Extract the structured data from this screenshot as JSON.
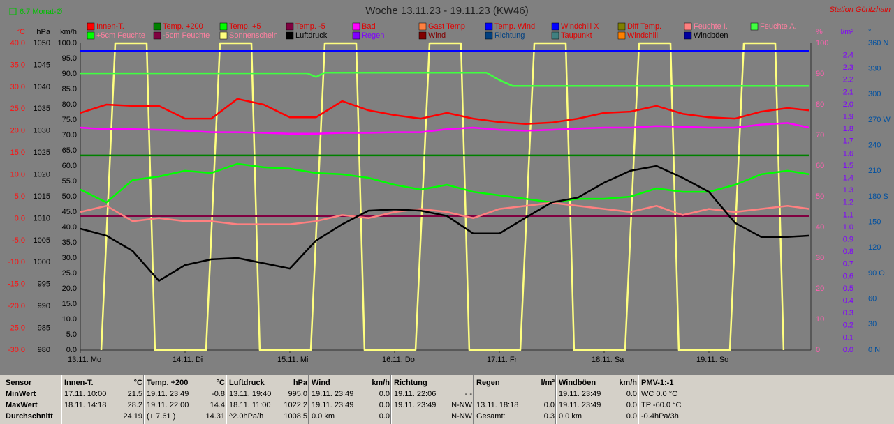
{
  "monthly_avg": "6.7 Monat-Ø",
  "station": "Station Göritzhain",
  "chart_data": {
    "type": "line",
    "title": "Woche 13.11.23 - 19.11.23 (KW46)",
    "xlim": [
      0,
      168
    ],
    "xticks": [
      {
        "value": 0,
        "label": "13.11. Mo"
      },
      {
        "value": 24,
        "label": "14.11. Di"
      },
      {
        "value": 48,
        "label": "15.11. Mi"
      },
      {
        "value": 72,
        "label": "16.11. Do"
      },
      {
        "value": 96,
        "label": "17.11. Fr"
      },
      {
        "value": 120,
        "label": "18.11. Sa"
      },
      {
        "value": 144,
        "label": "19.11. So"
      }
    ],
    "axes": {
      "C": {
        "label": "°C",
        "color": "#ff1010",
        "lim": [
          -30,
          40
        ],
        "ticks": [
          {
            "value": -30,
            "label": "-30.0"
          },
          {
            "value": -25,
            "label": "-25.0"
          },
          {
            "value": -20,
            "label": "-20.0"
          },
          {
            "value": -15,
            "label": "-15.0"
          },
          {
            "value": -10,
            "label": "-10.0"
          },
          {
            "value": -5,
            "label": "-5.0"
          },
          {
            "value": 0,
            "label": "0.0"
          },
          {
            "value": 5,
            "label": "5.0"
          },
          {
            "value": 10,
            "label": "10.0"
          },
          {
            "value": 15,
            "label": "15.0"
          },
          {
            "value": 20,
            "label": "20.0"
          },
          {
            "value": 25,
            "label": "25.0"
          },
          {
            "value": 30,
            "label": "30.0"
          },
          {
            "value": 35,
            "label": "35.0"
          },
          {
            "value": 40,
            "label": "40.0"
          }
        ]
      },
      "hPa": {
        "label": "hPa",
        "color": "#000000",
        "lim": [
          980,
          1050
        ],
        "ticks": [
          980,
          985,
          990,
          995,
          1000,
          1005,
          1010,
          1015,
          1020,
          1025,
          1030,
          1035,
          1040,
          1045,
          1050
        ]
      },
      "kmh": {
        "label": "km/h",
        "color": "#000000",
        "lim": [
          0,
          100
        ],
        "ticks": [
          {
            "value": 0,
            "label": "0.0"
          },
          {
            "value": 5,
            "label": "5.0"
          },
          {
            "value": 10,
            "label": "10.0"
          },
          {
            "value": 15,
            "label": "15.0"
          },
          {
            "value": 20,
            "label": "20.0"
          },
          {
            "value": 25,
            "label": "25.0"
          },
          {
            "value": 30,
            "label": "30.0"
          },
          {
            "value": 35,
            "label": "35.0"
          },
          {
            "value": 40,
            "label": "40.0"
          },
          {
            "value": 45,
            "label": "45.0"
          },
          {
            "value": 50,
            "label": "50.0"
          },
          {
            "value": 55,
            "label": "55.0"
          },
          {
            "value": 60,
            "label": "60.0"
          },
          {
            "value": 65,
            "label": "65.0"
          },
          {
            "value": 70,
            "label": "70.0"
          },
          {
            "value": 75,
            "label": "75.0"
          },
          {
            "value": 80,
            "label": "80.0"
          },
          {
            "value": 85,
            "label": "85.0"
          },
          {
            "value": 90,
            "label": "90.0"
          },
          {
            "value": 95,
            "label": "95.0"
          },
          {
            "value": 100,
            "label": "100.0"
          }
        ]
      },
      "pct": {
        "label": "%",
        "color": "#ff60b0",
        "lim": [
          0,
          100
        ],
        "ticks": [
          0,
          10,
          20,
          30,
          40,
          50,
          60,
          70,
          80,
          90,
          100
        ]
      },
      "rain": {
        "label": "l/m²",
        "color": "#8000ff",
        "lim": [
          0,
          2.5
        ],
        "ticks": [
          {
            "value": 0,
            "label": "0.0"
          },
          0.1,
          0.2,
          0.3,
          0.4,
          0.5,
          0.6,
          0.7,
          0.8,
          0.9,
          {
            "value": 1,
            "label": "1.0"
          },
          1.1,
          1.2,
          1.3,
          1.4,
          1.5,
          1.6,
          1.7,
          1.8,
          1.9,
          {
            "value": 2,
            "label": "2.0"
          },
          2.1,
          2.2,
          2.3,
          2.4
        ]
      },
      "dir": {
        "label": "°",
        "color": "#0050a0",
        "lim": [
          0,
          360
        ],
        "ticks": [
          {
            "value": 0,
            "label": "0 N"
          },
          30,
          60,
          {
            "value": 90,
            "label": "90 O"
          },
          120,
          150,
          {
            "value": 180,
            "label": "180 S"
          },
          210,
          240,
          {
            "value": 270,
            "label": "270 W"
          },
          300,
          330,
          {
            "value": 360,
            "label": "360 N"
          }
        ]
      }
    },
    "x": [
      0,
      6,
      12,
      18,
      24,
      30,
      36,
      42,
      48,
      54,
      60,
      66,
      72,
      78,
      84,
      90,
      96,
      102,
      108,
      114,
      120,
      126,
      132,
      138,
      144,
      150,
      156,
      162,
      167
    ],
    "series": [
      {
        "name": "Innen-T.",
        "color": "#ff0000",
        "label_color": "#e00000",
        "axis": "C",
        "values": [
          24.1,
          26.0,
          25.7,
          25.7,
          22.8,
          22.8,
          27.3,
          26.0,
          23.1,
          23.1,
          26.8,
          24.7,
          23.6,
          22.8,
          24.1,
          22.8,
          22.0,
          21.6,
          21.9,
          22.8,
          24.1,
          24.4,
          25.7,
          23.9,
          23.1,
          22.8,
          24.4,
          25.2,
          24.7
        ]
      },
      {
        "name": "Temp. +200",
        "color": "#008000",
        "label_color": "#e00000",
        "axis": "C",
        "x": [
          0,
          167
        ],
        "values": [
          14.4,
          14.4
        ]
      },
      {
        "name": "Temp. +5",
        "color": "#00ff00",
        "label_color": "#e00000",
        "axis": "C",
        "values": [
          6.6,
          3.7,
          8.8,
          9.6,
          10.9,
          10.4,
          12.5,
          11.7,
          11.4,
          10.4,
          10.1,
          9.3,
          7.7,
          6.6,
          7.7,
          6.1,
          5.3,
          4.5,
          3.7,
          4.5,
          4.5,
          5.0,
          6.9,
          6.1,
          6.1,
          7.7,
          10.1,
          10.9,
          10.1
        ]
      },
      {
        "name": "Temp. -5",
        "color": "#800040",
        "label_color": "#e00000",
        "axis": "C",
        "x": [
          0,
          167
        ],
        "values": [
          0.6,
          0.6
        ]
      },
      {
        "name": "Bad",
        "color": "#ff00ff",
        "label_color": "#e00000",
        "axis": "pct",
        "values": [
          72.5,
          72,
          72,
          71.8,
          71.5,
          71,
          71,
          70.8,
          70.5,
          70.5,
          70.8,
          70.8,
          71,
          71,
          72,
          72.5,
          71.8,
          71.5,
          71.8,
          72.2,
          72.5,
          72.5,
          73,
          72.8,
          72.5,
          72.5,
          73.5,
          74,
          72.5
        ]
      },
      {
        "name": "Gast Temp",
        "color": "#ff8040",
        "label_color": "#e00000"
      },
      {
        "name": "Temp. Wind",
        "color": "#0000ff",
        "label_color": "#e00000"
      },
      {
        "name": "Windchill X",
        "color": "#0000ff",
        "label_color": "#e00000",
        "axis": "C",
        "x": [
          0,
          167
        ],
        "values": [
          38.2,
          38.2
        ]
      },
      {
        "name": "Diff Temp.",
        "color": "#808000",
        "label_color": "#e00000"
      },
      {
        "name": "Feuchte I.",
        "color": "#ff8080",
        "label_color": "#ff80a0",
        "axis": "pct",
        "values": [
          45,
          47,
          42,
          43,
          42,
          42,
          41,
          41,
          41,
          42,
          44,
          43,
          45,
          46,
          45,
          43,
          46,
          47,
          48,
          47,
          46,
          45,
          47,
          44,
          46,
          45,
          46,
          47,
          46
        ]
      },
      {
        "name": "Feuchte A.",
        "color": "#40ff40",
        "label_color": "#ff80a0",
        "axis": "pct",
        "x": [
          0,
          52,
          54,
          56,
          93,
          96,
          99,
          167
        ],
        "values": [
          90.2,
          90.2,
          89,
          90.4,
          90.4,
          88,
          86.1,
          86.1
        ]
      },
      {
        "name": "+5cm Feuchte",
        "color": "#00ff00",
        "label_color": "#ff80a0"
      },
      {
        "name": "-5cm Feuchte",
        "color": "#800040",
        "label_color": "#ff80a0"
      },
      {
        "name": "Sonnenschein",
        "color": "#ffff80",
        "label_color": "#ff80a0",
        "axis": "kmh",
        "x": [
          4.8,
          8,
          15.2,
          17.1,
          28.8,
          32,
          39.2,
          41.1,
          52.8,
          56,
          63.2,
          65.1,
          76.8,
          80,
          87.2,
          89.1,
          100.8,
          104,
          111.2,
          113.1,
          124.8,
          128,
          135.2,
          137.1,
          148.8,
          152,
          159.2,
          161.1
        ],
        "values": [
          0,
          100,
          100,
          0,
          0,
          100,
          100,
          0,
          0,
          100,
          100,
          0,
          0,
          100,
          100,
          0,
          0,
          100,
          100,
          0,
          0,
          100,
          100,
          0,
          0,
          100,
          100,
          0
        ]
      },
      {
        "name": "Luftdruck",
        "color": "#000000",
        "label_color": "#000000",
        "axis": "hPa",
        "values": [
          1007.7,
          1006.1,
          1002.6,
          995.8,
          999.4,
          1000.7,
          1001.0,
          999.8,
          998.6,
          1005.0,
          1008.7,
          1011.8,
          1012.1,
          1011.8,
          1010.6,
          1006.6,
          1006.6,
          1010.2,
          1013.7,
          1014.8,
          1018.2,
          1020.9,
          1022.0,
          1019.3,
          1016.1,
          1009.0,
          1005.8,
          1005.8,
          1006.1
        ]
      },
      {
        "name": "Regen",
        "color": "#8000ff",
        "label_color": "#8000ff"
      },
      {
        "name": "Wind",
        "color": "#800000",
        "label_color": "#800000"
      },
      {
        "name": "Richtung",
        "color": "#004080",
        "label_color": "#004080"
      },
      {
        "name": "Taupunkt",
        "color": "#408080",
        "label_color": "#e00000"
      },
      {
        "name": "Windchill",
        "color": "#ff8000",
        "label_color": "#e00000"
      },
      {
        "name": "Windböen",
        "color": "#0000a0",
        "label_color": "#000000"
      }
    ]
  },
  "table": {
    "row_labels": [
      "Sensor",
      "MinWert",
      "MaxWert",
      "Durchschnitt"
    ],
    "panels": [
      {
        "title": "Innen-T.",
        "unit": "°C",
        "rows": [
          {
            "left": "17.11. 10:00",
            "right": "21.5"
          },
          {
            "left": "18.11. 14:18",
            "right": "28.2"
          },
          {
            "right": "24.19"
          }
        ]
      },
      {
        "title": "Temp. +200",
        "unit": "°C",
        "rows": [
          {
            "left": "19.11. 23:49",
            "right": "-0.8"
          },
          {
            "left": "19.11. 22:00",
            "right": "14.4"
          },
          {
            "left": "(+ 7.61 )",
            "right": "14.31"
          }
        ]
      },
      {
        "title": "Luftdruck",
        "unit": "hPa",
        "rows": [
          {
            "left": "13.11. 19:40",
            "right": "995.0"
          },
          {
            "left": "18.11. 11:00",
            "right": "1022.2"
          },
          {
            "left": "^2.0hPa/h",
            "right": "1008.5"
          }
        ]
      },
      {
        "title": "Wind",
        "unit": "km/h",
        "rows": [
          {
            "left": "19.11. 23:49",
            "right": "0.0"
          },
          {
            "left": "19.11. 23:49",
            "right": "0.0"
          },
          {
            "left": "0.0 km",
            "right": "0.0"
          }
        ]
      },
      {
        "title": "Richtung",
        "rows": [
          {
            "left": "19.11. 22:06",
            "right": "- -"
          },
          {
            "left": "19.11. 23:49",
            "right": "N-NW"
          },
          {
            "right": "N-NW"
          }
        ]
      },
      {
        "title": "Regen",
        "unit": "l/m²",
        "rows": [
          {},
          {
            "left": "13.11. 18:18",
            "right": "0.0"
          },
          {
            "left": "Gesamt:",
            "right": "0.3"
          }
        ]
      },
      {
        "title": "Windböen",
        "unit": "km/h",
        "rows": [
          {
            "left": "19.11. 23:49",
            "right": "0.0"
          },
          {
            "left": "19.11. 23:49",
            "right": "0.0"
          },
          {
            "left": "0.0 km",
            "right": "0.0"
          }
        ]
      },
      {
        "title": "PMV-1:-1",
        "rows": [
          {
            "left": "WC 0.0 °C"
          },
          {
            "left": "TP -60.0 °C"
          },
          {
            "left": "-0.4hPa/3h"
          }
        ]
      }
    ]
  }
}
